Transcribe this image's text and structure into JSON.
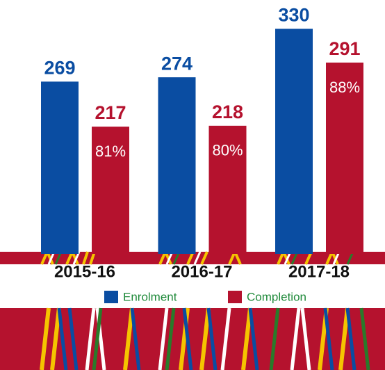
{
  "chart_data": {
    "type": "bar",
    "categories": [
      "2015-16",
      "2016-17",
      "2017-18"
    ],
    "series": [
      {
        "name": "Enrolment",
        "color": "#0a4da2",
        "values": [
          269,
          274,
          330
        ]
      },
      {
        "name": "Completion",
        "color": "#b5122e",
        "values": [
          217,
          218,
          291
        ],
        "rate_labels": [
          "81%",
          "80%",
          "88%"
        ]
      }
    ],
    "ylim": [
      70,
      340
    ]
  }
}
